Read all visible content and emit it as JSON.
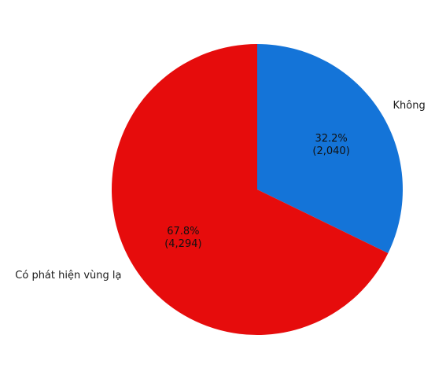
{
  "chart_data": {
    "type": "pie",
    "title": "",
    "slices": [
      {
        "label": "Không",
        "value": 2040,
        "percent_text": "32.2%",
        "count_text": "(2,040)",
        "color": "#1474d8"
      },
      {
        "label": "Có phát hiện vùng lạ",
        "value": 4294,
        "percent_text": "67.8%",
        "count_text": "(4,294)",
        "color": "#e60c0c"
      }
    ],
    "start_angle_deg": 90,
    "direction": "clockwise",
    "legend": "none"
  }
}
